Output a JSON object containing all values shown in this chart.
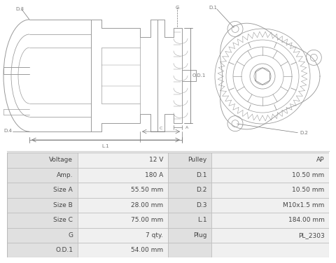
{
  "table_rows": [
    [
      "Voltage",
      "12 V",
      "Pulley",
      "AP"
    ],
    [
      "Amp.",
      "180 A",
      "D.1",
      "10.50 mm"
    ],
    [
      "Size A",
      "55.50 mm",
      "D.2",
      "10.50 mm"
    ],
    [
      "Size B",
      "28.00 mm",
      "D.3",
      "M10x1.5 mm"
    ],
    [
      "Size C",
      "75.00 mm",
      "L.1",
      "184.00 mm"
    ],
    [
      "G",
      "7 qty.",
      "Plug",
      "PL_2303"
    ],
    [
      "O.D.1",
      "54.00 mm",
      "",
      ""
    ]
  ],
  "bg_color": "#ffffff",
  "table_label_bg": "#e0e0e0",
  "table_val_bg": "#f0f0f0",
  "table_border": "#bbbbbb",
  "dc": "#999999",
  "lc": "#777777",
  "font_sz": 6.5,
  "diagram_bg": "#ffffff"
}
